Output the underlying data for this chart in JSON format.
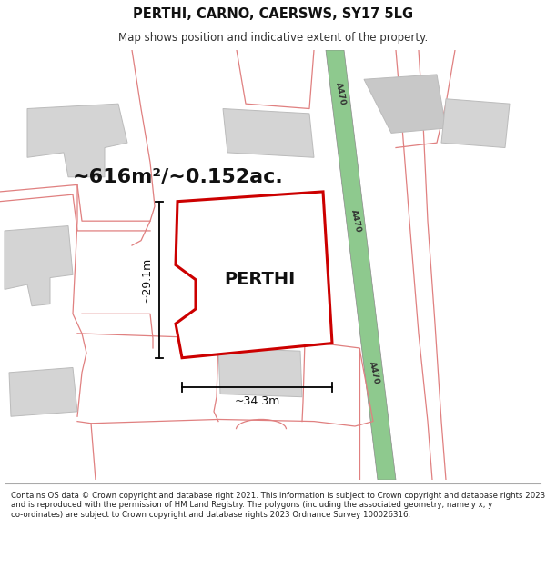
{
  "title": "PERTHI, CARNO, CAERSWS, SY17 5LG",
  "subtitle": "Map shows position and indicative extent of the property.",
  "area_label": "~616m²/~0.152ac.",
  "plot_label": "PERTHI",
  "dim_width": "~34.3m",
  "dim_height": "~29.1m",
  "road_label": "A470",
  "footer_text": "Contains OS data © Crown copyright and database right 2021. This information is subject to Crown copyright and database rights 2023 and is reproduced with the permission of HM Land Registry. The polygons (including the associated geometry, namely x, y co-ordinates) are subject to Crown copyright and database rights 2023 Ordnance Survey 100026316.",
  "bg_color": "#ffffff",
  "map_bg": "#f0f0ec",
  "road_green": "#8ec98e",
  "plot_fill": "#ffffff",
  "plot_edge": "#cc0000",
  "building_fill": "#d4d4d4",
  "building_edge": "#bbbbbb",
  "pink_line": "#e08080",
  "title_fontsize": 10.5,
  "subtitle_fontsize": 8.5,
  "area_fontsize": 16,
  "perthi_fontsize": 14
}
